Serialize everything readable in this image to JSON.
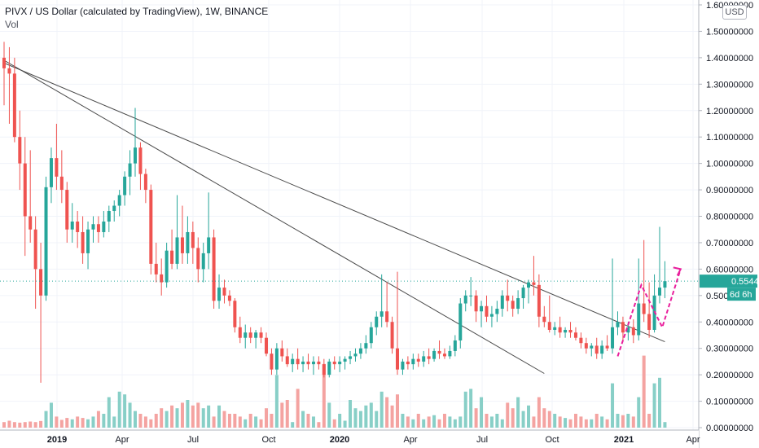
{
  "header": {
    "title": "PIVX / US Dollar (calculated by TradingView), 1W, BINANCE",
    "volume_label": "Vol",
    "currency": "USD"
  },
  "colors": {
    "up": "#26a69a",
    "down": "#ef5350",
    "vol_up": "#88cfc7",
    "vol_down": "#f4a3a1",
    "trendline": "#4a4a4a",
    "annotation": "#e91e9c",
    "price_line": "#26a69a",
    "grid": "#f0f3fa"
  },
  "chart_data": {
    "type": "candlestick",
    "y_axis": {
      "min": 0,
      "max": 1.6,
      "ticks": [
        "0.00000000",
        "0.10000000",
        "0.20000000",
        "0.30000000",
        "0.40000000",
        "0.50000000",
        "0.60000000",
        "0.70000000",
        "0.80000000",
        "0.90000000",
        "1.00000000",
        "1.10000000",
        "1.20000000",
        "1.30000000",
        "1.40000000",
        "1.50000000",
        "1.60000000"
      ]
    },
    "x_axis": {
      "labels": [
        "2019",
        "Apr",
        "Jul",
        "Oct",
        "2020",
        "Apr",
        "Jul",
        "Oct",
        "2021",
        "Apr"
      ]
    },
    "last_price": {
      "value": 0.55445637,
      "label": "0.55445637",
      "countdown": "6d 6h"
    },
    "candles": [
      [
        1.4,
        1.46,
        1.22,
        1.36
      ],
      [
        1.36,
        1.44,
        1.15,
        1.34
      ],
      [
        1.34,
        1.4,
        1.08,
        1.1
      ],
      [
        1.1,
        1.2,
        0.9,
        1.0
      ],
      [
        1.0,
        1.1,
        0.65,
        0.8
      ],
      [
        0.8,
        1.05,
        0.7,
        0.75
      ],
      [
        0.75,
        0.8,
        0.45,
        0.6
      ],
      [
        0.6,
        0.7,
        0.17,
        0.5
      ],
      [
        0.5,
        0.95,
        0.48,
        0.91
      ],
      [
        0.91,
        1.06,
        0.85,
        1.02
      ],
      [
        1.02,
        1.15,
        0.9,
        0.95
      ],
      [
        0.95,
        1.05,
        0.85,
        0.9
      ],
      [
        0.9,
        0.93,
        0.7,
        0.75
      ],
      [
        0.75,
        0.85,
        0.7,
        0.78
      ],
      [
        0.78,
        0.82,
        0.68,
        0.74
      ],
      [
        0.74,
        0.8,
        0.62,
        0.66
      ],
      [
        0.66,
        0.78,
        0.6,
        0.75
      ],
      [
        0.75,
        0.8,
        0.7,
        0.77
      ],
      [
        0.77,
        0.8,
        0.7,
        0.74
      ],
      [
        0.74,
        0.82,
        0.72,
        0.78
      ],
      [
        0.78,
        0.84,
        0.74,
        0.82
      ],
      [
        0.82,
        0.86,
        0.78,
        0.84
      ],
      [
        0.84,
        0.9,
        0.8,
        0.88
      ],
      [
        0.88,
        0.97,
        0.84,
        0.95
      ],
      [
        0.95,
        1.05,
        0.88,
        1.0
      ],
      [
        1.0,
        1.21,
        0.95,
        1.06
      ],
      [
        1.06,
        1.08,
        0.9,
        0.96
      ],
      [
        0.96,
        0.98,
        0.85,
        0.9
      ],
      [
        0.9,
        0.92,
        0.58,
        0.62
      ],
      [
        0.62,
        0.7,
        0.55,
        0.58
      ],
      [
        0.58,
        0.64,
        0.5,
        0.55
      ],
      [
        0.55,
        0.7,
        0.53,
        0.67
      ],
      [
        0.67,
        0.75,
        0.6,
        0.62
      ],
      [
        0.62,
        0.88,
        0.6,
        0.72
      ],
      [
        0.72,
        0.84,
        0.62,
        0.66
      ],
      [
        0.66,
        0.8,
        0.62,
        0.74
      ],
      [
        0.74,
        0.78,
        0.62,
        0.68
      ],
      [
        0.68,
        0.72,
        0.55,
        0.6
      ],
      [
        0.6,
        0.7,
        0.55,
        0.66
      ],
      [
        0.66,
        0.89,
        0.6,
        0.72
      ],
      [
        0.72,
        0.75,
        0.45,
        0.48
      ],
      [
        0.48,
        0.58,
        0.45,
        0.53
      ],
      [
        0.53,
        0.56,
        0.47,
        0.5
      ],
      [
        0.5,
        0.52,
        0.46,
        0.48
      ],
      [
        0.48,
        0.49,
        0.36,
        0.38
      ],
      [
        0.38,
        0.42,
        0.32,
        0.34
      ],
      [
        0.34,
        0.39,
        0.3,
        0.36
      ],
      [
        0.36,
        0.38,
        0.32,
        0.34
      ],
      [
        0.34,
        0.37,
        0.3,
        0.36
      ],
      [
        0.36,
        0.38,
        0.32,
        0.34
      ],
      [
        0.34,
        0.36,
        0.27,
        0.28
      ],
      [
        0.28,
        0.3,
        0.2,
        0.22
      ],
      [
        0.22,
        0.32,
        0.2,
        0.3
      ],
      [
        0.3,
        0.33,
        0.25,
        0.27
      ],
      [
        0.27,
        0.3,
        0.23,
        0.24
      ],
      [
        0.24,
        0.28,
        0.21,
        0.26
      ],
      [
        0.26,
        0.3,
        0.22,
        0.24
      ],
      [
        0.24,
        0.27,
        0.21,
        0.25
      ],
      [
        0.25,
        0.28,
        0.22,
        0.24
      ],
      [
        0.24,
        0.27,
        0.2,
        0.25
      ],
      [
        0.25,
        0.27,
        0.22,
        0.24
      ],
      [
        0.24,
        0.26,
        0.19,
        0.2
      ],
      [
        0.2,
        0.26,
        0.19,
        0.25
      ],
      [
        0.25,
        0.27,
        0.22,
        0.24
      ],
      [
        0.24,
        0.27,
        0.21,
        0.25
      ],
      [
        0.25,
        0.27,
        0.22,
        0.26
      ],
      [
        0.26,
        0.29,
        0.24,
        0.27
      ],
      [
        0.27,
        0.3,
        0.25,
        0.28
      ],
      [
        0.28,
        0.32,
        0.26,
        0.3
      ],
      [
        0.3,
        0.35,
        0.28,
        0.32
      ],
      [
        0.32,
        0.4,
        0.3,
        0.38
      ],
      [
        0.38,
        0.44,
        0.35,
        0.42
      ],
      [
        0.42,
        0.58,
        0.38,
        0.44
      ],
      [
        0.44,
        0.55,
        0.38,
        0.4
      ],
      [
        0.4,
        0.42,
        0.28,
        0.3
      ],
      [
        0.3,
        0.59,
        0.2,
        0.22
      ],
      [
        0.22,
        0.26,
        0.2,
        0.25
      ],
      [
        0.25,
        0.27,
        0.22,
        0.24
      ],
      [
        0.24,
        0.28,
        0.22,
        0.26
      ],
      [
        0.26,
        0.28,
        0.23,
        0.25
      ],
      [
        0.25,
        0.29,
        0.23,
        0.27
      ],
      [
        0.27,
        0.3,
        0.24,
        0.26
      ],
      [
        0.26,
        0.3,
        0.25,
        0.29
      ],
      [
        0.29,
        0.33,
        0.26,
        0.28
      ],
      [
        0.28,
        0.3,
        0.26,
        0.27
      ],
      [
        0.27,
        0.31,
        0.26,
        0.29
      ],
      [
        0.29,
        0.35,
        0.27,
        0.33
      ],
      [
        0.33,
        0.49,
        0.3,
        0.47
      ],
      [
        0.47,
        0.52,
        0.44,
        0.5
      ],
      [
        0.5,
        0.57,
        0.46,
        0.5
      ],
      [
        0.5,
        0.52,
        0.4,
        0.44
      ],
      [
        0.44,
        0.48,
        0.38,
        0.46
      ],
      [
        0.46,
        0.5,
        0.4,
        0.42
      ],
      [
        0.42,
        0.46,
        0.38,
        0.43
      ],
      [
        0.43,
        0.48,
        0.4,
        0.45
      ],
      [
        0.45,
        0.52,
        0.42,
        0.5
      ],
      [
        0.5,
        0.56,
        0.44,
        0.48
      ],
      [
        0.48,
        0.5,
        0.42,
        0.45
      ],
      [
        0.45,
        0.52,
        0.43,
        0.49
      ],
      [
        0.49,
        0.54,
        0.45,
        0.53
      ],
      [
        0.53,
        0.56,
        0.47,
        0.55
      ],
      [
        0.55,
        0.65,
        0.5,
        0.54
      ],
      [
        0.54,
        0.58,
        0.38,
        0.42
      ],
      [
        0.42,
        0.46,
        0.38,
        0.4
      ],
      [
        0.4,
        0.5,
        0.36,
        0.37
      ],
      [
        0.37,
        0.4,
        0.35,
        0.38
      ],
      [
        0.38,
        0.42,
        0.34,
        0.36
      ],
      [
        0.36,
        0.38,
        0.34,
        0.37
      ],
      [
        0.37,
        0.4,
        0.34,
        0.36
      ],
      [
        0.36,
        0.38,
        0.33,
        0.34
      ],
      [
        0.34,
        0.36,
        0.3,
        0.32
      ],
      [
        0.32,
        0.34,
        0.28,
        0.3
      ],
      [
        0.3,
        0.32,
        0.27,
        0.31
      ],
      [
        0.31,
        0.34,
        0.26,
        0.28
      ],
      [
        0.28,
        0.33,
        0.26,
        0.31
      ],
      [
        0.31,
        0.35,
        0.29,
        0.3
      ],
      [
        0.3,
        0.64,
        0.28,
        0.38
      ],
      [
        0.38,
        0.44,
        0.35,
        0.4
      ],
      [
        0.4,
        0.42,
        0.33,
        0.36
      ],
      [
        0.36,
        0.4,
        0.33,
        0.38
      ],
      [
        0.38,
        0.41,
        0.32,
        0.35
      ],
      [
        0.35,
        0.64,
        0.33,
        0.47
      ],
      [
        0.47,
        0.71,
        0.4,
        0.43
      ],
      [
        0.43,
        0.55,
        0.34,
        0.37
      ],
      [
        0.37,
        0.58,
        0.36,
        0.5
      ],
      [
        0.5,
        0.76,
        0.47,
        0.53
      ],
      [
        0.53,
        0.63,
        0.49,
        0.5544
      ]
    ],
    "volumes": [
      0.02,
      0.025,
      0.02,
      0.018,
      0.02,
      0.022,
      0.02,
      0.024,
      0.06,
      0.09,
      0.04,
      0.028,
      0.035,
      0.03,
      0.04,
      0.035,
      0.03,
      0.04,
      0.06,
      0.05,
      0.11,
      0.04,
      0.13,
      0.12,
      0.09,
      0.06,
      0.05,
      0.04,
      0.03,
      0.05,
      0.07,
      0.06,
      0.08,
      0.07,
      0.09,
      0.1,
      0.08,
      0.09,
      0.07,
      0.08,
      0.04,
      0.08,
      0.06,
      0.05,
      0.05,
      0.04,
      0.03,
      0.05,
      0.04,
      0.03,
      0.07,
      0.05,
      0.19,
      0.09,
      0.1,
      0.02,
      0.14,
      0.06,
      0.05,
      0.04,
      0.02,
      0.23,
      0.09,
      0.03,
      0.05,
      0.025,
      0.1,
      0.07,
      0.06,
      0.08,
      0.09,
      0.06,
      0.13,
      0.11,
      0.08,
      0.12,
      0.05,
      0.04,
      0.03,
      0.05,
      0.03,
      0.04,
      0.045,
      0.03,
      0.05,
      0.04,
      0.03,
      0.04,
      0.13,
      0.14,
      0.07,
      0.11,
      0.05,
      0.04,
      0.05,
      0.03,
      0.09,
      0.07,
      0.11,
      0.06,
      0.08,
      0.04,
      0.11,
      0.07,
      0.06,
      0.05,
      0.04,
      0.035,
      0.03,
      0.05,
      0.04,
      0.03,
      0.03,
      0.05,
      0.04,
      0.03,
      0.16,
      0.05,
      0.045,
      0.05,
      0.04,
      0.11,
      0.26,
      0.05,
      0.16,
      0.18,
      0.02
    ],
    "trendlines": [
      {
        "from": [
          0,
          1.38
        ],
        "to": [
          126,
          0.325
        ]
      },
      {
        "from": [
          0,
          1.39
        ],
        "to": [
          103,
          0.205
        ]
      }
    ],
    "annotation_path": [
      [
        117,
        0.27
      ],
      [
        121.5,
        0.54
      ],
      [
        125.5,
        0.38
      ],
      [
        129,
        0.6
      ]
    ]
  }
}
